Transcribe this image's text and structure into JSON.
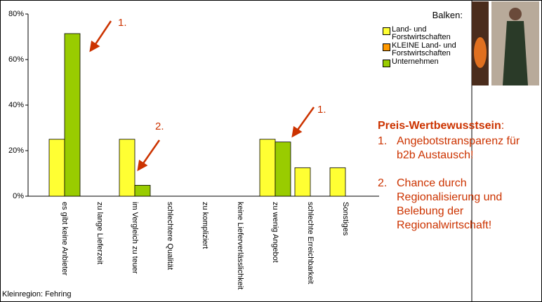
{
  "chart_data": {
    "type": "bar",
    "categories": [
      "es gibt keine Anbieter",
      "zu lange Lieferzeit",
      "im Vergleich zu teuer",
      "schlechtere Qualität",
      "zu kompliziert",
      "keine Lieferverlässlichkeit",
      "zu wenig Angebot",
      "schlechte Erreichbarkeit",
      "Sonstiges"
    ],
    "series": [
      {
        "name": "Land- und Forstwirtschaften",
        "color": "#ffff33",
        "values": [
          25,
          0,
          25,
          0,
          0,
          0,
          25,
          12.5,
          12.5
        ]
      },
      {
        "name": "KLEINE Land- und Forstwirtschaften",
        "color": "#ff9900",
        "values": [
          0,
          0,
          0,
          0,
          0,
          0,
          0,
          0,
          0
        ]
      },
      {
        "name": "Unternehmen",
        "color": "#99cc00",
        "values": [
          71.4,
          0,
          4.8,
          0,
          0,
          0,
          23.8,
          0,
          0
        ]
      }
    ],
    "legend_title": "Balken:",
    "ylim": [
      0,
      80
    ],
    "yticks": [
      {
        "value": 0,
        "label": "0%"
      },
      {
        "value": 20,
        "label": "20%"
      },
      {
        "value": 40,
        "label": "40%"
      },
      {
        "value": 60,
        "label": "60%"
      },
      {
        "value": 80,
        "label": "80%"
      }
    ],
    "annotations": [
      "1.",
      "2.",
      "1."
    ],
    "footer": "Kleinregion: Fehring"
  },
  "side_text": {
    "title": "Preis-Wertbewusstsein",
    "title_suffix": ":",
    "items": [
      {
        "number": "1.",
        "text": "Angebotstransparenz für b2b Austausch!"
      },
      {
        "number": "2.",
        "text": "Chance durch Regionalisierung und Belebung der Regionalwirtschaft!"
      }
    ]
  }
}
